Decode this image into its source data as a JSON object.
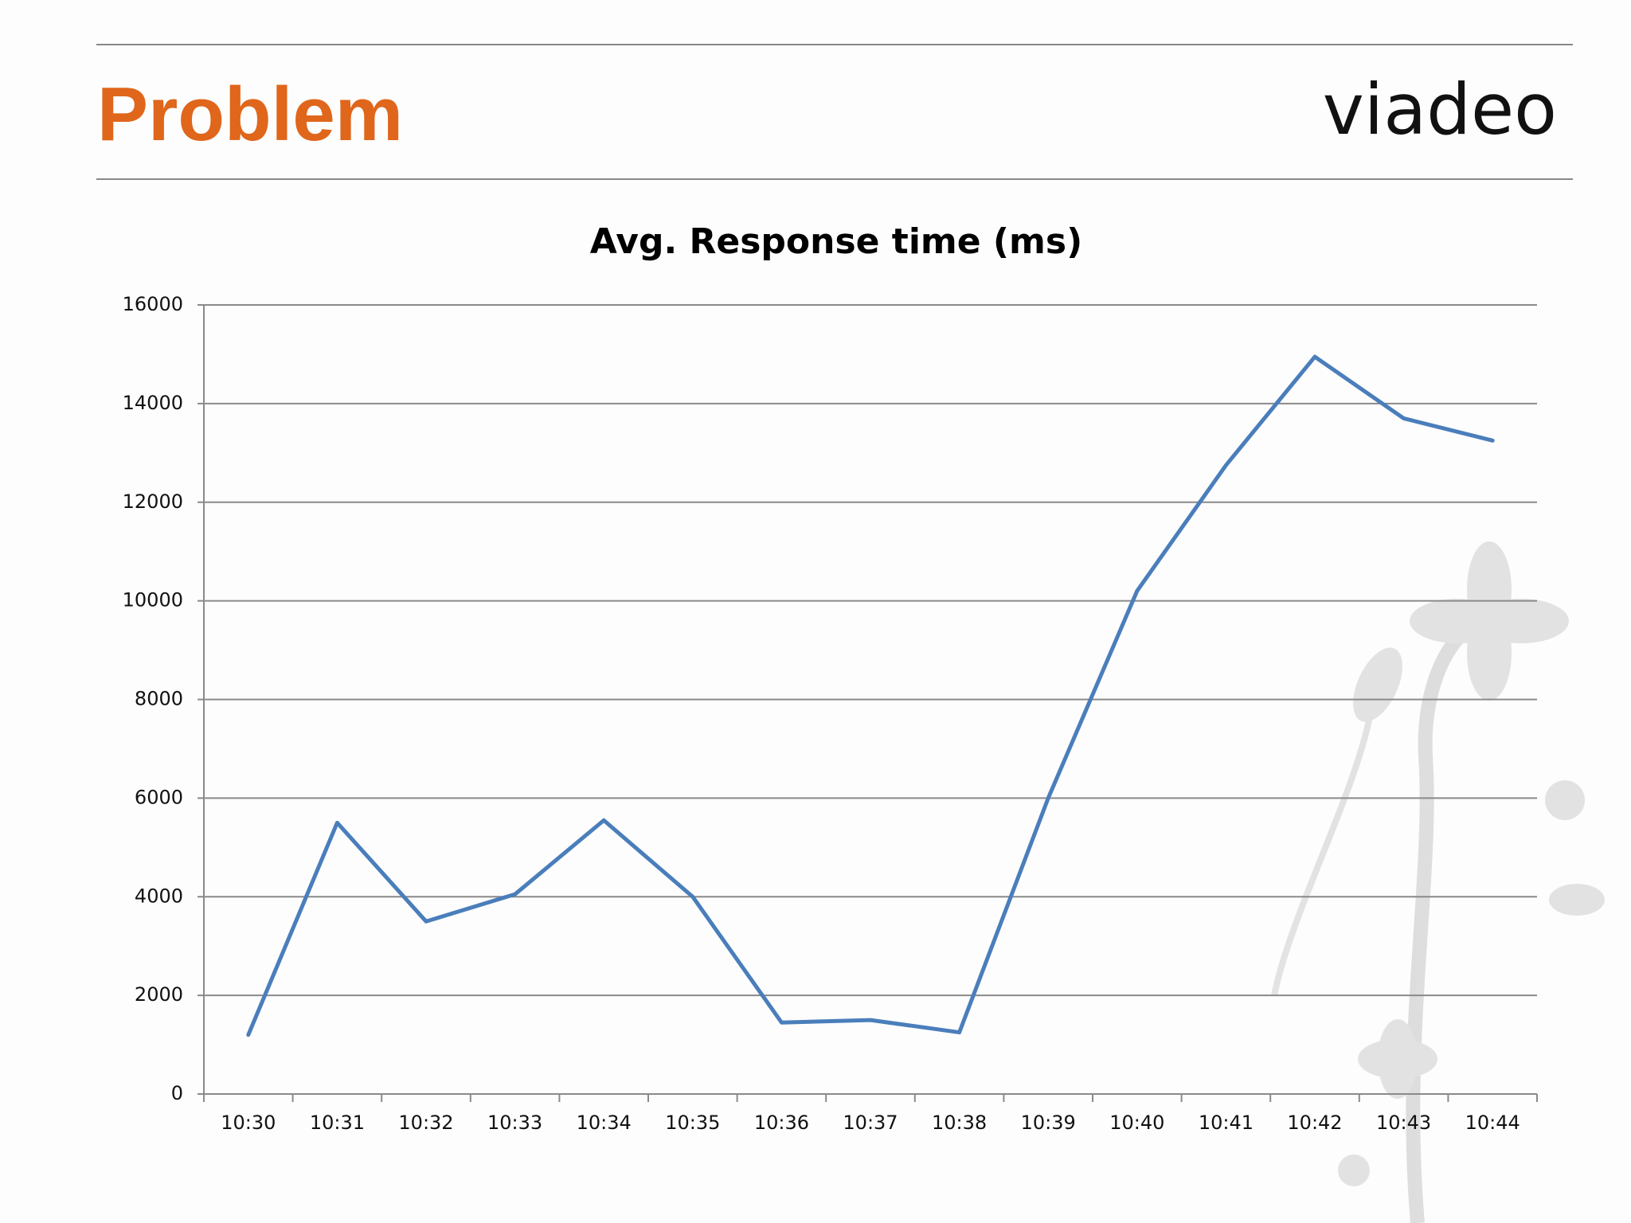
{
  "slide": {
    "title": "Problem",
    "logo": "viadeo"
  },
  "chart_data": {
    "type": "line",
    "title": "Avg. Response time (ms)",
    "categories": [
      "10:30",
      "10:31",
      "10:32",
      "10:33",
      "10:34",
      "10:35",
      "10:36",
      "10:37",
      "10:38",
      "10:39",
      "10:40",
      "10:41",
      "10:42",
      "10:43",
      "10:44"
    ],
    "values": [
      1200,
      5500,
      3500,
      4050,
      5550,
      4000,
      1450,
      1500,
      1250,
      6000,
      10200,
      12750,
      14950,
      13700,
      13250
    ],
    "color": "#4a7ebb",
    "ylim": [
      0,
      16000
    ],
    "yticks": [
      0,
      2000,
      4000,
      6000,
      8000,
      10000,
      12000,
      14000,
      16000
    ],
    "grid": true
  }
}
